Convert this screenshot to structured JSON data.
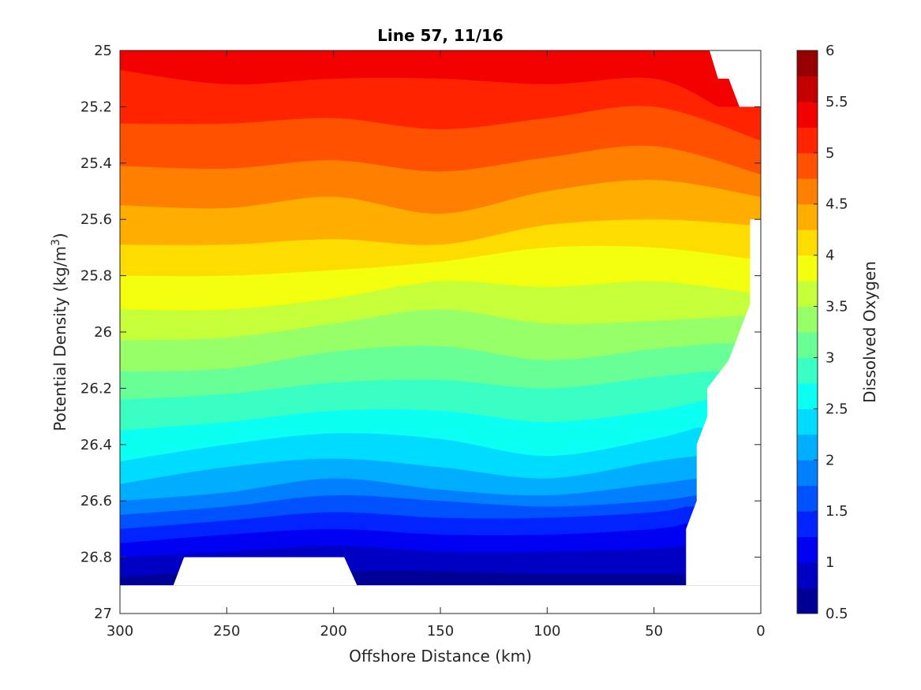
{
  "chart_data": {
    "type": "heatmap",
    "subtype": "filled-contour",
    "title": "Line 57, 11/16",
    "xlabel": "Offshore Distance (km)",
    "ylabel_main": "Potential Density (kg/m",
    "ylabel_sup": "3",
    "ylabel_end": ")",
    "colorbar_label": "Dissolved Oxygen",
    "xlim": [
      300,
      0
    ],
    "ylim": [
      25,
      27
    ],
    "x_reversed": true,
    "y_reversed": true,
    "x_ticks": [
      300,
      250,
      200,
      150,
      100,
      50,
      0
    ],
    "x_tick_labels": [
      "300",
      "250",
      "200",
      "150",
      "100",
      "50",
      "0"
    ],
    "y_ticks": [
      25,
      25.2,
      25.4,
      25.6,
      25.8,
      26,
      26.2,
      26.4,
      26.6,
      26.8,
      27
    ],
    "y_tick_labels": [
      "25",
      "25.2",
      "25.4",
      "25.6",
      "25.8",
      "26",
      "26.2",
      "26.4",
      "26.6",
      "26.8",
      "27"
    ],
    "colorbar_ticks": [
      0.5,
      1,
      1.5,
      2,
      2.5,
      3,
      3.5,
      4,
      4.5,
      5,
      5.5,
      6
    ],
    "colorbar_tick_labels": [
      "0.5",
      "1",
      "1.5",
      "2",
      "2.5",
      "3",
      "3.5",
      "4",
      "4.5",
      "5",
      "5.5",
      "6"
    ],
    "colormap": "jet",
    "colorbar_range": [
      0.5,
      6
    ],
    "contour_step": 0.25,
    "contour_boundaries": [
      {
        "level": 5.25,
        "x": [
          300,
          250,
          200,
          150,
          100,
          50,
          20
        ],
        "y": [
          25.07,
          25.12,
          25.1,
          25.1,
          25.12,
          25.1,
          25.2
        ]
      },
      {
        "level": 5.0,
        "x": [
          300,
          250,
          200,
          150,
          100,
          50,
          0
        ],
        "y": [
          25.26,
          25.26,
          25.24,
          25.28,
          25.24,
          25.2,
          25.32
        ]
      },
      {
        "level": 4.75,
        "x": [
          300,
          250,
          200,
          150,
          100,
          50,
          0
        ],
        "y": [
          25.41,
          25.42,
          25.39,
          25.43,
          25.38,
          25.34,
          25.44
        ]
      },
      {
        "level": 4.5,
        "x": [
          300,
          250,
          200,
          150,
          100,
          50,
          0
        ],
        "y": [
          25.55,
          25.56,
          25.52,
          25.58,
          25.5,
          25.46,
          25.52
        ]
      },
      {
        "level": 4.25,
        "x": [
          300,
          250,
          200,
          150,
          100,
          50,
          5
        ],
        "y": [
          25.69,
          25.69,
          25.67,
          25.69,
          25.62,
          25.6,
          25.62
        ]
      },
      {
        "level": 4.0,
        "x": [
          300,
          250,
          200,
          150,
          100,
          50,
          5
        ],
        "y": [
          25.8,
          25.8,
          25.78,
          25.75,
          25.7,
          25.7,
          25.74
        ]
      },
      {
        "level": 3.75,
        "x": [
          300,
          250,
          200,
          150,
          100,
          50,
          5
        ],
        "y": [
          25.92,
          25.92,
          25.88,
          25.82,
          25.84,
          25.82,
          25.86
        ]
      },
      {
        "level": 3.5,
        "x": [
          300,
          250,
          200,
          150,
          100,
          50,
          5
        ],
        "y": [
          26.03,
          26.02,
          25.97,
          25.92,
          25.97,
          25.96,
          25.94
        ]
      },
      {
        "level": 3.25,
        "x": [
          300,
          250,
          200,
          150,
          100,
          50,
          20
        ],
        "y": [
          26.14,
          26.13,
          26.07,
          26.05,
          26.1,
          26.06,
          26.04
        ]
      },
      {
        "level": 3.0,
        "x": [
          300,
          250,
          200,
          150,
          100,
          50,
          25
        ],
        "y": [
          26.24,
          26.22,
          26.18,
          26.17,
          26.2,
          26.16,
          26.14
        ]
      },
      {
        "level": 2.75,
        "x": [
          300,
          250,
          200,
          150,
          100,
          50,
          25
        ],
        "y": [
          26.35,
          26.32,
          26.28,
          26.28,
          26.32,
          26.28,
          26.24
        ]
      },
      {
        "level": 2.5,
        "x": [
          300,
          250,
          200,
          150,
          100,
          50,
          30
        ],
        "y": [
          26.46,
          26.4,
          26.36,
          26.38,
          26.44,
          26.38,
          26.34
        ]
      },
      {
        "level": 2.25,
        "x": [
          300,
          250,
          200,
          150,
          100,
          50,
          30
        ],
        "y": [
          26.54,
          26.48,
          26.45,
          26.48,
          26.52,
          26.46,
          26.44
        ]
      },
      {
        "level": 2.0,
        "x": [
          300,
          250,
          200,
          150,
          100,
          50,
          30
        ],
        "y": [
          26.6,
          26.57,
          26.52,
          26.56,
          26.58,
          26.54,
          26.52
        ]
      },
      {
        "level": 1.75,
        "x": [
          300,
          250,
          200,
          150,
          100,
          50,
          30
        ],
        "y": [
          26.65,
          26.62,
          26.58,
          26.6,
          26.62,
          26.6,
          26.58
        ]
      },
      {
        "level": 1.5,
        "x": [
          300,
          250,
          200,
          150,
          100,
          50,
          35
        ],
        "y": [
          26.7,
          26.67,
          26.64,
          26.66,
          26.66,
          26.64,
          26.62
        ]
      },
      {
        "level": 1.25,
        "x": [
          300,
          250,
          200,
          150,
          100,
          50,
          35
        ],
        "y": [
          26.75,
          26.72,
          26.7,
          26.72,
          26.72,
          26.7,
          26.68
        ]
      },
      {
        "level": 1.0,
        "x": [
          300,
          250,
          200,
          150,
          100,
          50,
          35
        ],
        "y": [
          26.8,
          26.78,
          26.76,
          26.78,
          26.78,
          26.77,
          26.76
        ]
      },
      {
        "level": 0.75,
        "x": [
          300,
          250,
          200,
          150,
          100,
          50,
          35
        ],
        "y": [
          26.87,
          26.85,
          26.85,
          26.85,
          26.86,
          26.86,
          26.86
        ]
      }
    ],
    "missing_regions": [
      {
        "name": "top-right",
        "x": [
          24,
          20,
          15,
          10,
          10,
          0,
          0
        ],
        "y": [
          25,
          25.1,
          25.1,
          25.2,
          25.2,
          25.2,
          25
        ]
      },
      {
        "name": "right-side",
        "x": [
          0,
          0,
          5,
          5,
          15,
          15,
          25,
          25,
          30,
          30,
          35,
          35,
          0
        ],
        "y": [
          25.5,
          25.6,
          25.6,
          25.9,
          26.1,
          26.1,
          26.2,
          26.3,
          26.4,
          26.6,
          26.7,
          26.9,
          26.9
        ]
      },
      {
        "name": "bottom-strip",
        "x": [
          300,
          0,
          0,
          300
        ],
        "y": [
          26.9,
          26.9,
          27,
          27
        ]
      },
      {
        "name": "bottom-notch",
        "x": [
          270,
          195,
          189,
          275
        ],
        "y": [
          26.8,
          26.8,
          26.9,
          26.9
        ]
      }
    ],
    "grid": false
  }
}
